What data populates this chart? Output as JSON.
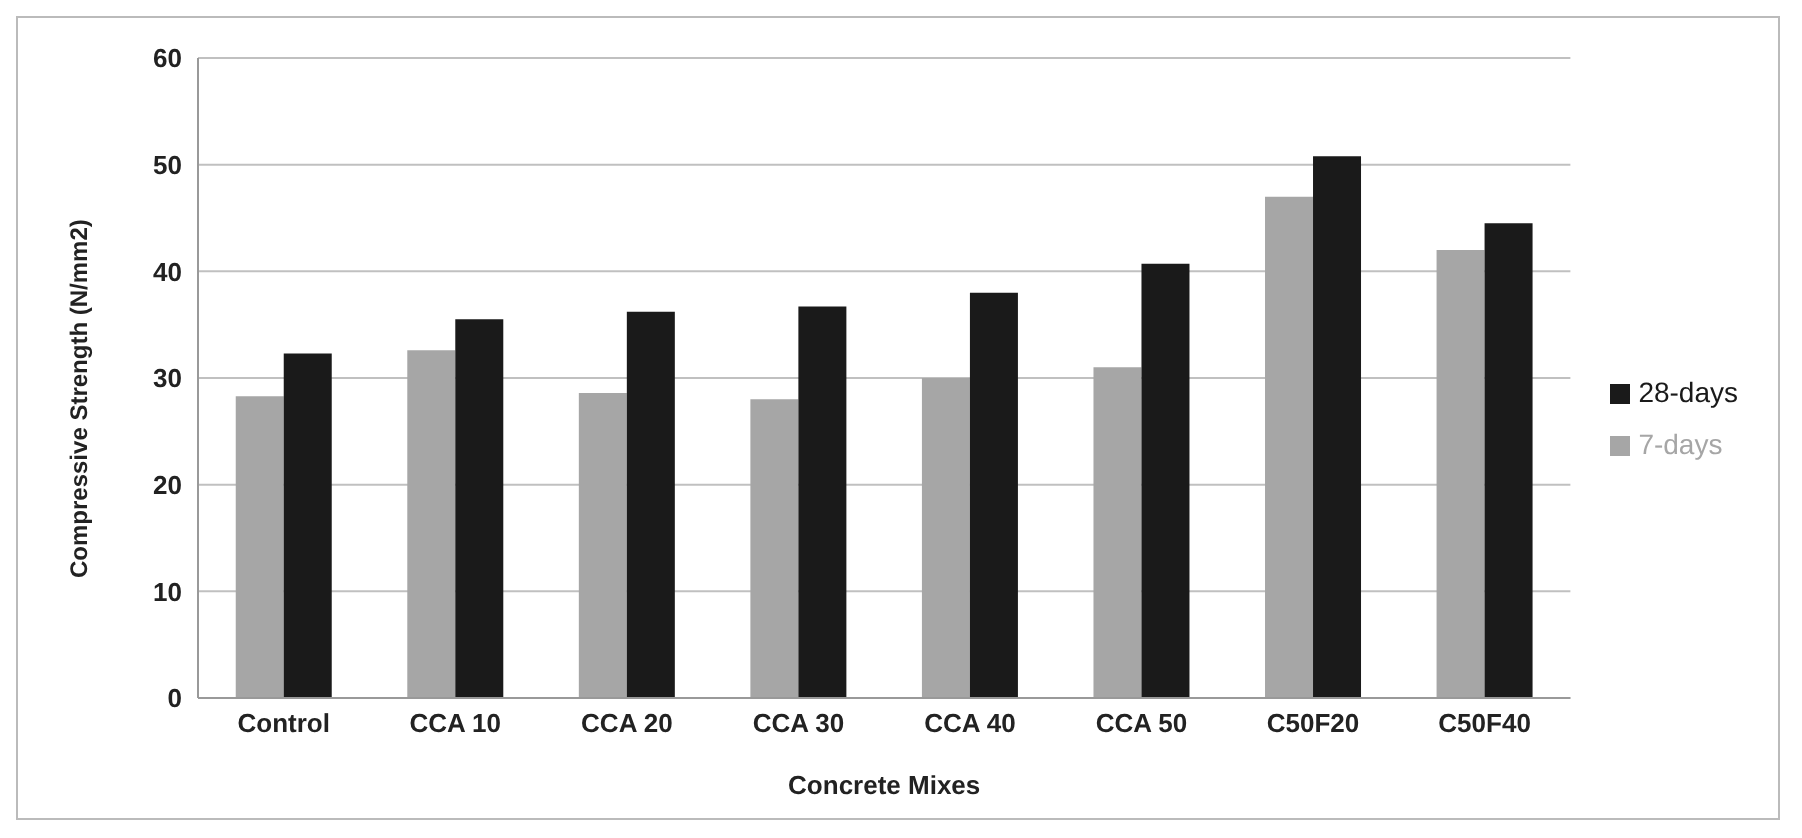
{
  "chart_data": {
    "type": "bar",
    "xlabel": "Concrete Mixes",
    "ylabel": "Compressive Strength (N/mm2)",
    "categories": [
      "Control",
      "CCA 10",
      "CCA 20",
      "CCA 30",
      "CCA 40",
      "CCA 50",
      "C50F20",
      "C50F40"
    ],
    "series": [
      {
        "name": "7-days",
        "color": "#a6a6a6",
        "values": [
          28.3,
          32.6,
          28.6,
          28,
          30,
          31,
          47,
          42
        ]
      },
      {
        "name": "28-days",
        "color": "#1a1a1a",
        "values": [
          32.3,
          35.5,
          36.2,
          36.7,
          38,
          40.7,
          50.8,
          44.5
        ]
      }
    ],
    "ylim": [
      0,
      60
    ],
    "yticks": [
      0,
      10,
      20,
      30,
      40,
      50,
      60
    ],
    "grid": "y",
    "legend": "right"
  }
}
